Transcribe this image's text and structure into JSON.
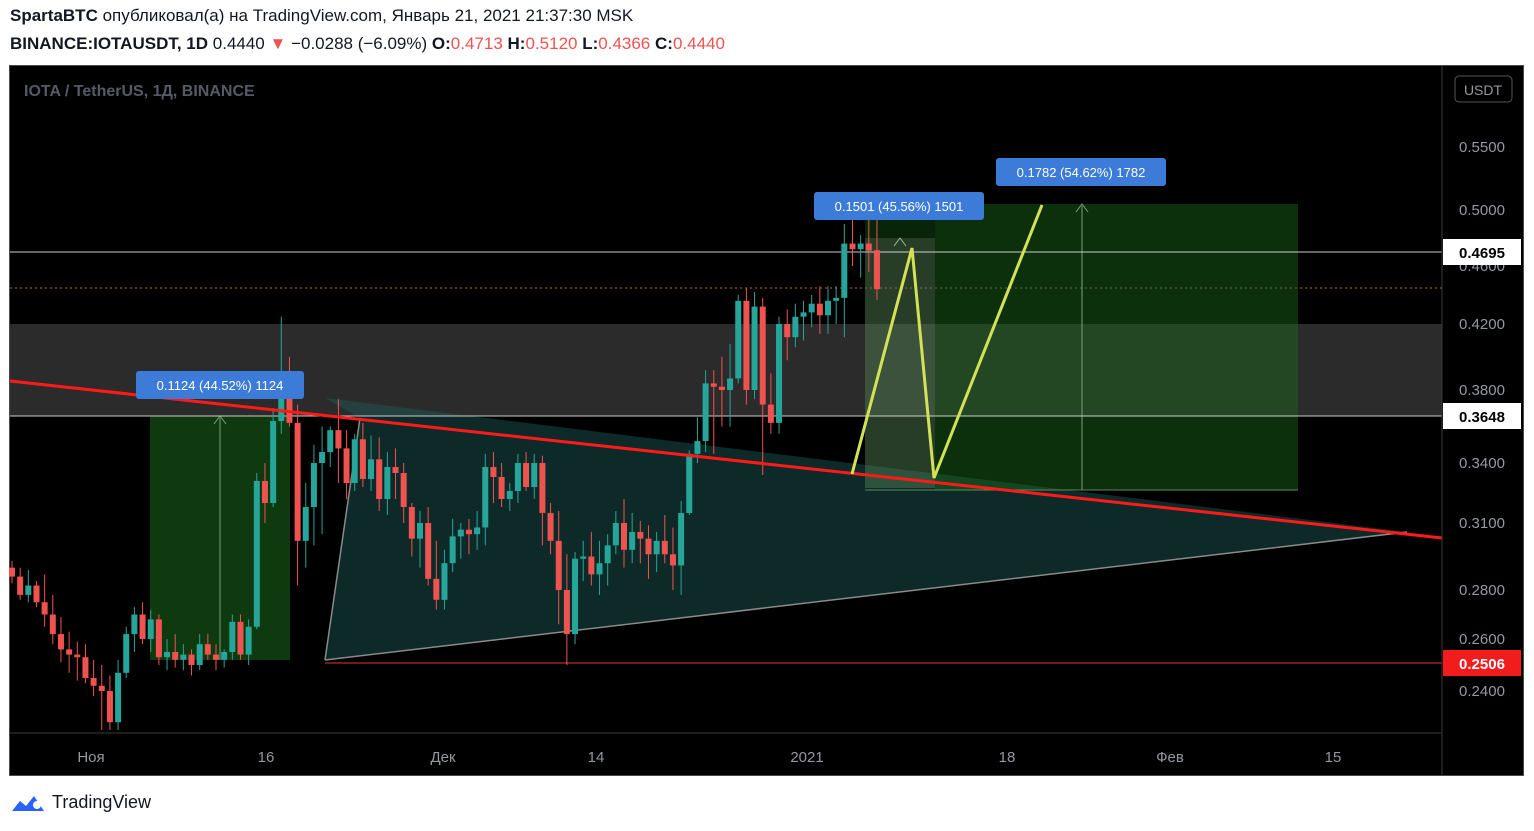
{
  "header": {
    "author": "SpartaBTC",
    "published_text": "опубликовал(а) на TradingView.com, Январь 21, 2021 21:37:30 MSK",
    "symbol": "BINANCE:IOTAUSDT, 1D",
    "last": "0.4440",
    "change": "−0.0288 (−6.09%)",
    "o_label": "O:",
    "o": "0.4713",
    "h_label": "H:",
    "h": "0.5120",
    "l_label": "L:",
    "l": "0.4366",
    "c_label": "C:",
    "c": "0.4440",
    "down_arrow": "▼"
  },
  "chart_title": "IOTA / TetherUS, 1Д, BINANCE",
  "currency_button": "USDT",
  "footer_brand": "TradingView",
  "colors": {
    "up": "#26a69a",
    "down": "#ef5350",
    "trendline": "#ff1a1a",
    "pattern": "#d4e157",
    "label_bg": "#3d7bd9"
  },
  "annotations": {
    "measure1": "0.1124 (44.52%) 1124",
    "measure2": "0.1501 (45.56%) 1501",
    "measure3": "0.1782 (54.62%) 1782",
    "price_tag_1": "0.4695",
    "price_tag_2": "0.3648",
    "price_tag_3": "0.2506"
  },
  "chart_data": {
    "type": "candlestick",
    "y_axis_ticks": [
      "0.5500",
      "0.5000",
      "0.4600",
      "0.4200",
      "0.3800",
      "0.3400",
      "0.3100",
      "0.2800",
      "0.2600",
      "0.2400"
    ],
    "x_axis_ticks": [
      "Ноя",
      "16",
      "Дек",
      "14",
      "2021",
      "18",
      "Фев",
      "15"
    ],
    "candles": [
      [
        0.29,
        0.293,
        0.283,
        0.286
      ],
      [
        0.286,
        0.29,
        0.276,
        0.278
      ],
      [
        0.278,
        0.289,
        0.275,
        0.282
      ],
      [
        0.282,
        0.284,
        0.273,
        0.275
      ],
      [
        0.275,
        0.287,
        0.265,
        0.27
      ],
      [
        0.27,
        0.278,
        0.258,
        0.262
      ],
      [
        0.262,
        0.269,
        0.251,
        0.256
      ],
      [
        0.256,
        0.263,
        0.247,
        0.254
      ],
      [
        0.254,
        0.259,
        0.244,
        0.253
      ],
      [
        0.253,
        0.258,
        0.243,
        0.245
      ],
      [
        0.245,
        0.252,
        0.238,
        0.242
      ],
      [
        0.242,
        0.25,
        0.225,
        0.24
      ],
      [
        0.24,
        0.246,
        0.225,
        0.228
      ],
      [
        0.228,
        0.252,
        0.225,
        0.247
      ],
      [
        0.247,
        0.265,
        0.245,
        0.262
      ],
      [
        0.262,
        0.273,
        0.255,
        0.27
      ],
      [
        0.27,
        0.275,
        0.258,
        0.26
      ],
      [
        0.26,
        0.272,
        0.255,
        0.268
      ],
      [
        0.268,
        0.27,
        0.25,
        0.253
      ],
      [
        0.253,
        0.26,
        0.248,
        0.255
      ],
      [
        0.255,
        0.262,
        0.249,
        0.252
      ],
      [
        0.252,
        0.258,
        0.248,
        0.254
      ],
      [
        0.254,
        0.256,
        0.246,
        0.25
      ],
      [
        0.25,
        0.262,
        0.248,
        0.258
      ],
      [
        0.258,
        0.262,
        0.252,
        0.254
      ],
      [
        0.254,
        0.258,
        0.248,
        0.252
      ],
      [
        0.252,
        0.256,
        0.249,
        0.255
      ],
      [
        0.255,
        0.27,
        0.252,
        0.267
      ],
      [
        0.267,
        0.27,
        0.252,
        0.254
      ],
      [
        0.254,
        0.268,
        0.25,
        0.265
      ],
      [
        0.265,
        0.335,
        0.264,
        0.331
      ],
      [
        0.331,
        0.34,
        0.31,
        0.32
      ],
      [
        0.32,
        0.37,
        0.318,
        0.363
      ],
      [
        0.363,
        0.425,
        0.356,
        0.383
      ],
      [
        0.383,
        0.4,
        0.36,
        0.362
      ],
      [
        0.362,
        0.372,
        0.282,
        0.302
      ],
      [
        0.302,
        0.33,
        0.29,
        0.318
      ],
      [
        0.318,
        0.35,
        0.3,
        0.34
      ],
      [
        0.34,
        0.36,
        0.305,
        0.346
      ],
      [
        0.346,
        0.36,
        0.338,
        0.358
      ],
      [
        0.358,
        0.375,
        0.33,
        0.348
      ],
      [
        0.348,
        0.358,
        0.322,
        0.33
      ],
      [
        0.33,
        0.356,
        0.326,
        0.353
      ],
      [
        0.353,
        0.362,
        0.328,
        0.332
      ],
      [
        0.332,
        0.355,
        0.326,
        0.342
      ],
      [
        0.342,
        0.354,
        0.316,
        0.322
      ],
      [
        0.322,
        0.346,
        0.314,
        0.338
      ],
      [
        0.338,
        0.348,
        0.322,
        0.335
      ],
      [
        0.335,
        0.34,
        0.31,
        0.318
      ],
      [
        0.318,
        0.32,
        0.295,
        0.303
      ],
      [
        0.303,
        0.316,
        0.29,
        0.31
      ],
      [
        0.31,
        0.318,
        0.282,
        0.285
      ],
      [
        0.285,
        0.302,
        0.272,
        0.276
      ],
      [
        0.276,
        0.298,
        0.272,
        0.292
      ],
      [
        0.292,
        0.312,
        0.288,
        0.304
      ],
      [
        0.304,
        0.31,
        0.294,
        0.307
      ],
      [
        0.307,
        0.312,
        0.296,
        0.305
      ],
      [
        0.305,
        0.316,
        0.298,
        0.308
      ],
      [
        0.308,
        0.345,
        0.3,
        0.338
      ],
      [
        0.338,
        0.346,
        0.32,
        0.333
      ],
      [
        0.333,
        0.34,
        0.318,
        0.322
      ],
      [
        0.322,
        0.33,
        0.316,
        0.326
      ],
      [
        0.326,
        0.345,
        0.32,
        0.34
      ],
      [
        0.34,
        0.346,
        0.326,
        0.328
      ],
      [
        0.328,
        0.345,
        0.322,
        0.34
      ],
      [
        0.34,
        0.344,
        0.3,
        0.315
      ],
      [
        0.315,
        0.32,
        0.296,
        0.302
      ],
      [
        0.302,
        0.316,
        0.266,
        0.28
      ],
      [
        0.28,
        0.296,
        0.25,
        0.262
      ],
      [
        0.262,
        0.297,
        0.258,
        0.294
      ],
      [
        0.294,
        0.302,
        0.284,
        0.295
      ],
      [
        0.295,
        0.306,
        0.282,
        0.287
      ],
      [
        0.287,
        0.302,
        0.278,
        0.292
      ],
      [
        0.292,
        0.305,
        0.282,
        0.3
      ],
      [
        0.3,
        0.316,
        0.296,
        0.31
      ],
      [
        0.31,
        0.322,
        0.29,
        0.298
      ],
      [
        0.298,
        0.315,
        0.292,
        0.306
      ],
      [
        0.306,
        0.311,
        0.292,
        0.303
      ],
      [
        0.303,
        0.309,
        0.285,
        0.296
      ],
      [
        0.296,
        0.306,
        0.288,
        0.302
      ],
      [
        0.302,
        0.314,
        0.292,
        0.296
      ],
      [
        0.296,
        0.308,
        0.28,
        0.291
      ],
      [
        0.291,
        0.321,
        0.278,
        0.315
      ],
      [
        0.315,
        0.347,
        0.314,
        0.345
      ],
      [
        0.345,
        0.365,
        0.34,
        0.352
      ],
      [
        0.352,
        0.392,
        0.346,
        0.384
      ],
      [
        0.384,
        0.392,
        0.345,
        0.382
      ],
      [
        0.382,
        0.4,
        0.36,
        0.38
      ],
      [
        0.38,
        0.408,
        0.36,
        0.387
      ],
      [
        0.387,
        0.44,
        0.384,
        0.436
      ],
      [
        0.436,
        0.445,
        0.372,
        0.38
      ],
      [
        0.38,
        0.442,
        0.375,
        0.432
      ],
      [
        0.432,
        0.438,
        0.334,
        0.372
      ],
      [
        0.372,
        0.39,
        0.356,
        0.362
      ],
      [
        0.362,
        0.425,
        0.356,
        0.42
      ],
      [
        0.42,
        0.43,
        0.398,
        0.412
      ],
      [
        0.412,
        0.434,
        0.406,
        0.425
      ],
      [
        0.425,
        0.436,
        0.41,
        0.428
      ],
      [
        0.428,
        0.44,
        0.418,
        0.434
      ],
      [
        0.434,
        0.446,
        0.414,
        0.426
      ],
      [
        0.426,
        0.446,
        0.414,
        0.436
      ],
      [
        0.436,
        0.446,
        0.42,
        0.438
      ],
      [
        0.438,
        0.49,
        0.412,
        0.476
      ],
      [
        0.476,
        0.502,
        0.46,
        0.472
      ],
      [
        0.472,
        0.482,
        0.452,
        0.476
      ],
      [
        0.476,
        0.512,
        0.456,
        0.471
      ],
      [
        0.4713,
        0.512,
        0.4366,
        0.444
      ]
    ],
    "levels": [
      0.4695,
      0.3648,
      0.2506
    ],
    "measurements": [
      "0.1124 (44.52%) 1124",
      "0.1501 (45.56%) 1501",
      "0.1782 (54.62%) 1782"
    ]
  }
}
